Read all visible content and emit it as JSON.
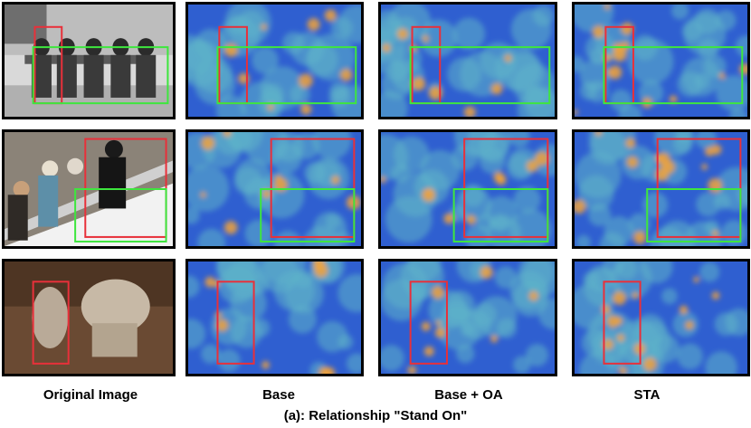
{
  "figure": {
    "column_labels": [
      "Original Image",
      "Base",
      "Base + OA",
      "STA"
    ],
    "caption": "(a): Relationship \"Stand On\"",
    "colors": {
      "subject_box": "#e8303a",
      "object_box": "#3ee63e",
      "heat_low": "#2f5fd0",
      "heat_mid": "#5fb3c8",
      "heat_high": "#f2a23a"
    },
    "rows": [
      {
        "scene": "five-people-on-bench-grayscale"
      },
      {
        "scene": "snowboarder-on-rail"
      },
      {
        "scene": "two-elephants"
      }
    ]
  }
}
